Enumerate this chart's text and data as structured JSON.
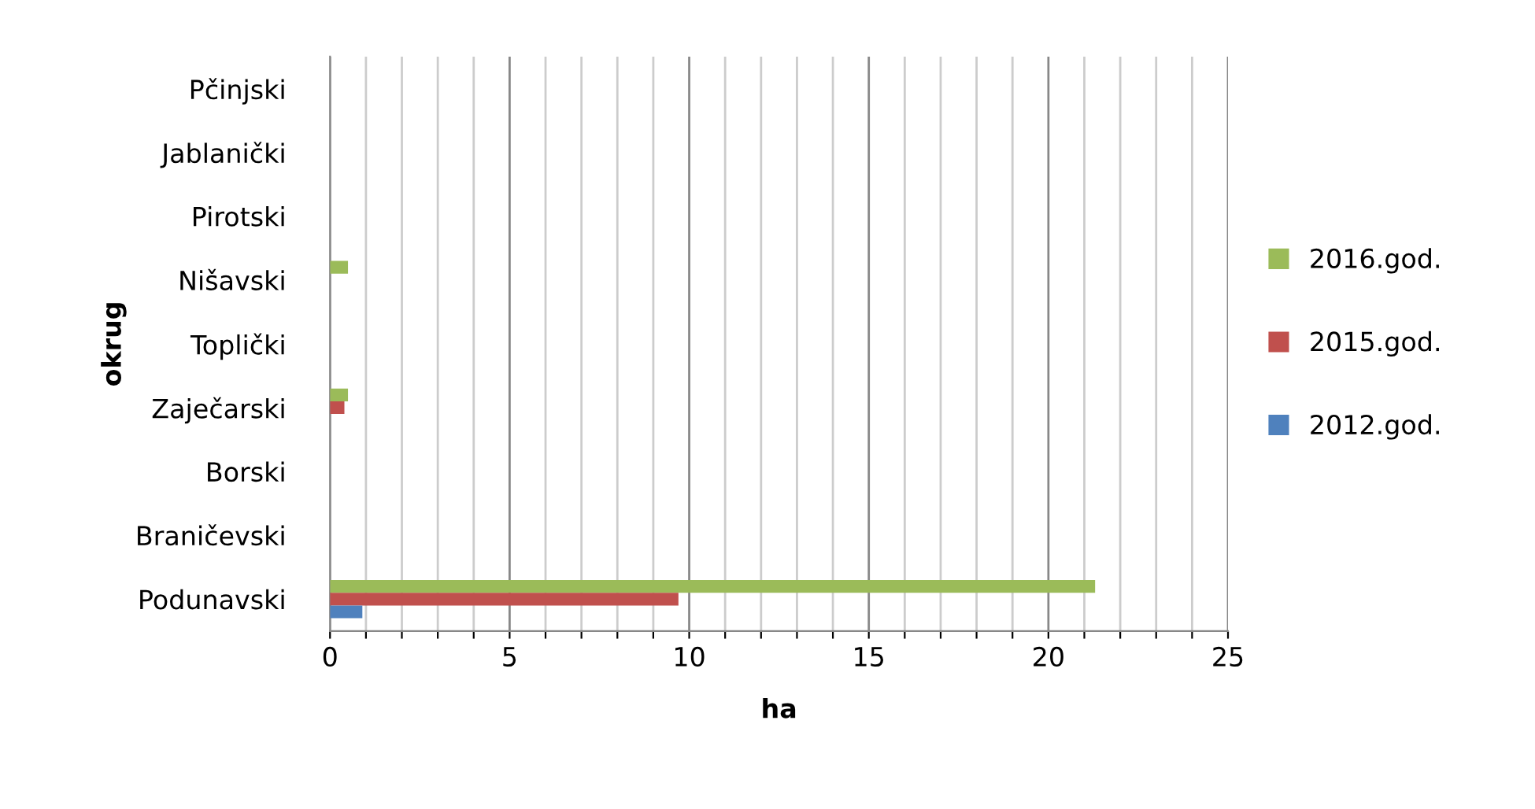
{
  "chart_data": {
    "type": "bar",
    "orientation": "horizontal",
    "xlabel": "ha",
    "ylabel": "okrug",
    "categories": [
      "Pčinjski",
      "Jablanički",
      "Pirotski",
      "Nišavski",
      "Toplički",
      "Zaječarski",
      "Borski",
      "Braničevski",
      "Podunavski"
    ],
    "series": [
      {
        "name": "2016.god.",
        "color": "#9bbb59",
        "values": [
          0,
          0,
          0,
          0.5,
          0,
          0.5,
          0,
          0,
          21.3
        ]
      },
      {
        "name": "2015.god.",
        "color": "#c0504d",
        "values": [
          0,
          0,
          0,
          0,
          0,
          0.4,
          0,
          0,
          9.7
        ]
      },
      {
        "name": "2012.god.",
        "color": "#4f81bd",
        "values": [
          0,
          0,
          0,
          0,
          0,
          0,
          0,
          0,
          0.9
        ]
      }
    ],
    "xlim": [
      0,
      25
    ],
    "xticks": [
      0,
      {
        "value": 1,
        "label": null
      },
      {
        "value": 2,
        "label": null
      },
      {
        "value": 3,
        "label": null
      },
      {
        "value": 4,
        "label": null
      },
      5,
      {
        "value": 6,
        "label": null
      },
      {
        "value": 7,
        "label": null
      },
      {
        "value": 8,
        "label": null
      },
      {
        "value": 9,
        "label": null
      },
      10,
      {
        "value": 11,
        "label": null
      },
      {
        "value": 12,
        "label": null
      },
      {
        "value": 13,
        "label": null
      },
      {
        "value": 14,
        "label": null
      },
      15,
      {
        "value": 16,
        "label": null
      },
      {
        "value": 17,
        "label": null
      },
      {
        "value": 18,
        "label": null
      },
      {
        "value": 19,
        "label": null
      },
      20,
      {
        "value": 21,
        "label": null
      },
      {
        "value": 22,
        "label": null
      },
      {
        "value": 23,
        "label": null
      },
      {
        "value": 24,
        "label": null
      },
      25
    ],
    "grid": "x",
    "legend": "right"
  }
}
